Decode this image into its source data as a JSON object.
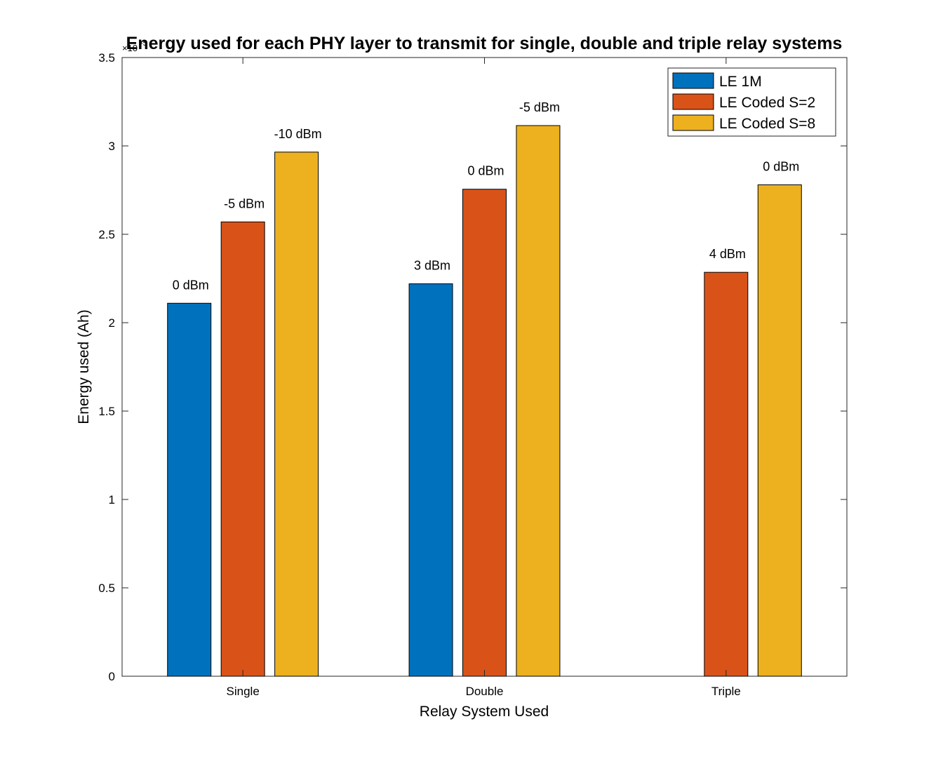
{
  "chart_data": {
    "type": "bar",
    "title": "Energy used for each PHY layer to transmit for single, double and triple relay systems",
    "xlabel": "Relay System Used",
    "ylabel": "Energy used (Ah)",
    "y_exponent": "-5",
    "ylim": [
      0,
      3.5
    ],
    "yticks": [
      "0",
      "0.5",
      "1",
      "1.5",
      "2",
      "2.5",
      "3",
      "3.5"
    ],
    "categories": [
      "Single",
      "Double",
      "Triple"
    ],
    "series": [
      {
        "name": "LE 1M",
        "color": "#0072BD",
        "values": [
          2.11,
          2.22,
          null
        ],
        "labels": [
          "0 dBm",
          "3 dBm",
          ""
        ]
      },
      {
        "name": "LE Coded S=2",
        "color": "#D95319",
        "values": [
          2.57,
          2.755,
          2.285
        ],
        "labels": [
          "-5 dBm",
          "0 dBm",
          "4 dBm"
        ]
      },
      {
        "name": "LE Coded S=8",
        "color": "#EDB120",
        "values": [
          2.965,
          3.115,
          2.78
        ],
        "labels": [
          "-10 dBm",
          "-5 dBm",
          "0 dBm"
        ]
      }
    ],
    "grid": false,
    "legend_position": "top-right"
  }
}
